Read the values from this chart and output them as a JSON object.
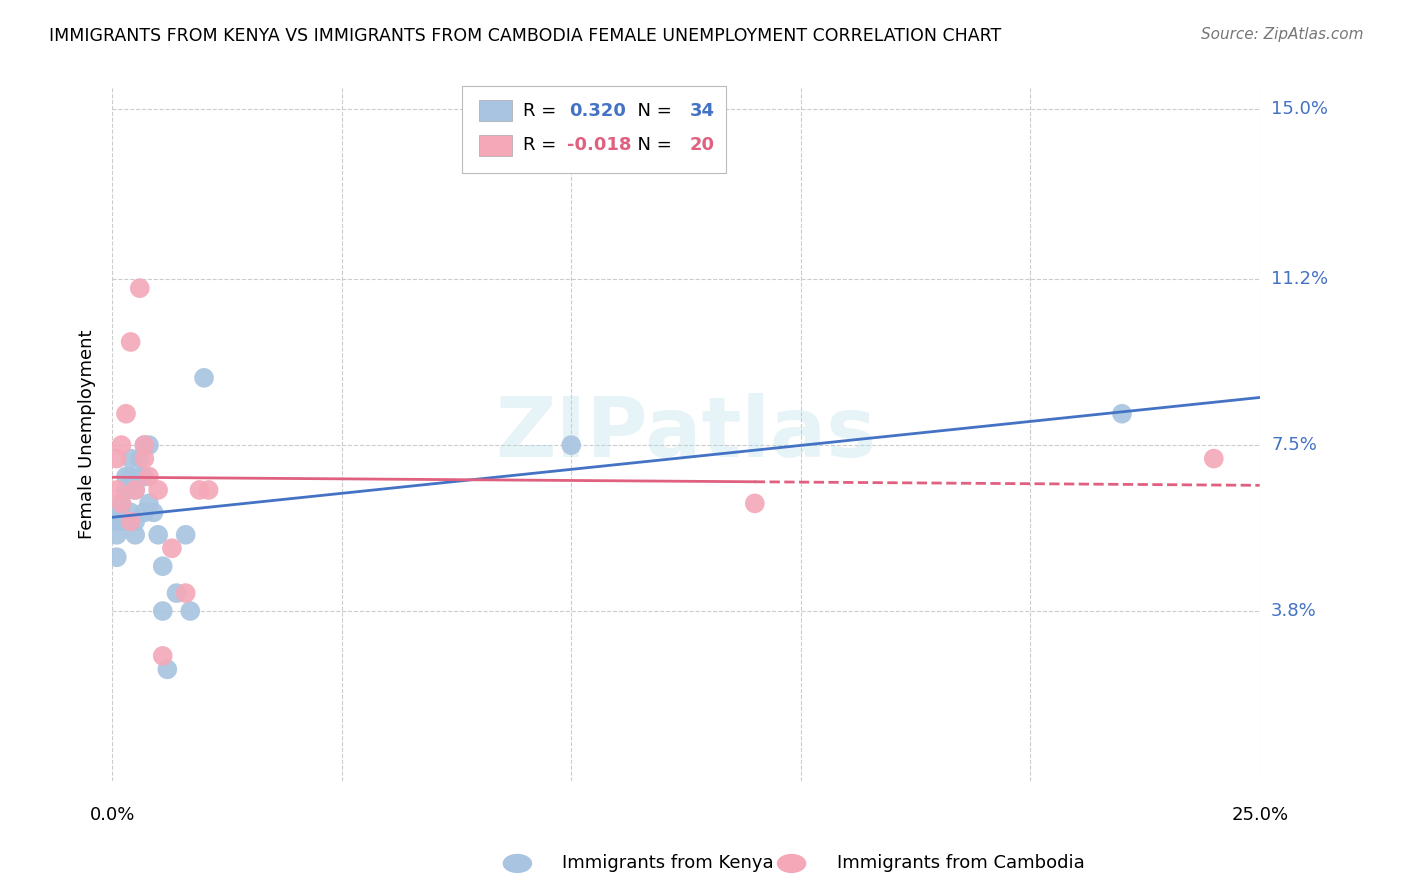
{
  "title": "IMMIGRANTS FROM KENYA VS IMMIGRANTS FROM CAMBODIA FEMALE UNEMPLOYMENT CORRELATION CHART",
  "source": "Source: ZipAtlas.com",
  "ylabel": "Female Unemployment",
  "xlim": [
    0.0,
    0.25
  ],
  "ylim": [
    0.0,
    0.155
  ],
  "y_ticks": [
    0.038,
    0.075,
    0.112,
    0.15
  ],
  "y_tick_labels": [
    "3.8%",
    "7.5%",
    "11.2%",
    "15.0%"
  ],
  "x_tick_labels": [
    "0.0%",
    "25.0%"
  ],
  "x_ticks_pos": [
    0.0,
    0.25
  ],
  "watermark_text": "ZIPatlas",
  "kenya_color": "#a8c4e0",
  "cambodia_color": "#f4a8b8",
  "kenya_line_color": "#4472c4",
  "cambodia_line_color": "#e06080",
  "background_color": "#ffffff",
  "grid_color": "#cccccc",
  "kenya_R": "0.320",
  "kenya_N": "34",
  "cambodia_R": "-0.018",
  "cambodia_N": "20",
  "kenya_x": [
    0.001,
    0.001,
    0.001,
    0.001,
    0.002,
    0.002,
    0.002,
    0.003,
    0.003,
    0.003,
    0.004,
    0.004,
    0.004,
    0.005,
    0.005,
    0.005,
    0.006,
    0.006,
    0.007,
    0.007,
    0.007,
    0.008,
    0.008,
    0.009,
    0.01,
    0.011,
    0.011,
    0.012,
    0.014,
    0.016,
    0.017,
    0.02,
    0.1,
    0.22
  ],
  "kenya_y": [
    0.055,
    0.06,
    0.058,
    0.05,
    0.058,
    0.062,
    0.06,
    0.068,
    0.065,
    0.058,
    0.072,
    0.068,
    0.06,
    0.058,
    0.065,
    0.055,
    0.072,
    0.068,
    0.075,
    0.068,
    0.06,
    0.075,
    0.062,
    0.06,
    0.055,
    0.038,
    0.048,
    0.025,
    0.042,
    0.055,
    0.038,
    0.09,
    0.075,
    0.082
  ],
  "cambodia_x": [
    0.001,
    0.001,
    0.002,
    0.002,
    0.003,
    0.004,
    0.004,
    0.005,
    0.006,
    0.007,
    0.007,
    0.008,
    0.01,
    0.011,
    0.013,
    0.016,
    0.019,
    0.021,
    0.14,
    0.24
  ],
  "cambodia_y": [
    0.072,
    0.065,
    0.075,
    0.062,
    0.082,
    0.058,
    0.098,
    0.065,
    0.11,
    0.072,
    0.075,
    0.068,
    0.065,
    0.028,
    0.052,
    0.042,
    0.065,
    0.065,
    0.062,
    0.072
  ]
}
